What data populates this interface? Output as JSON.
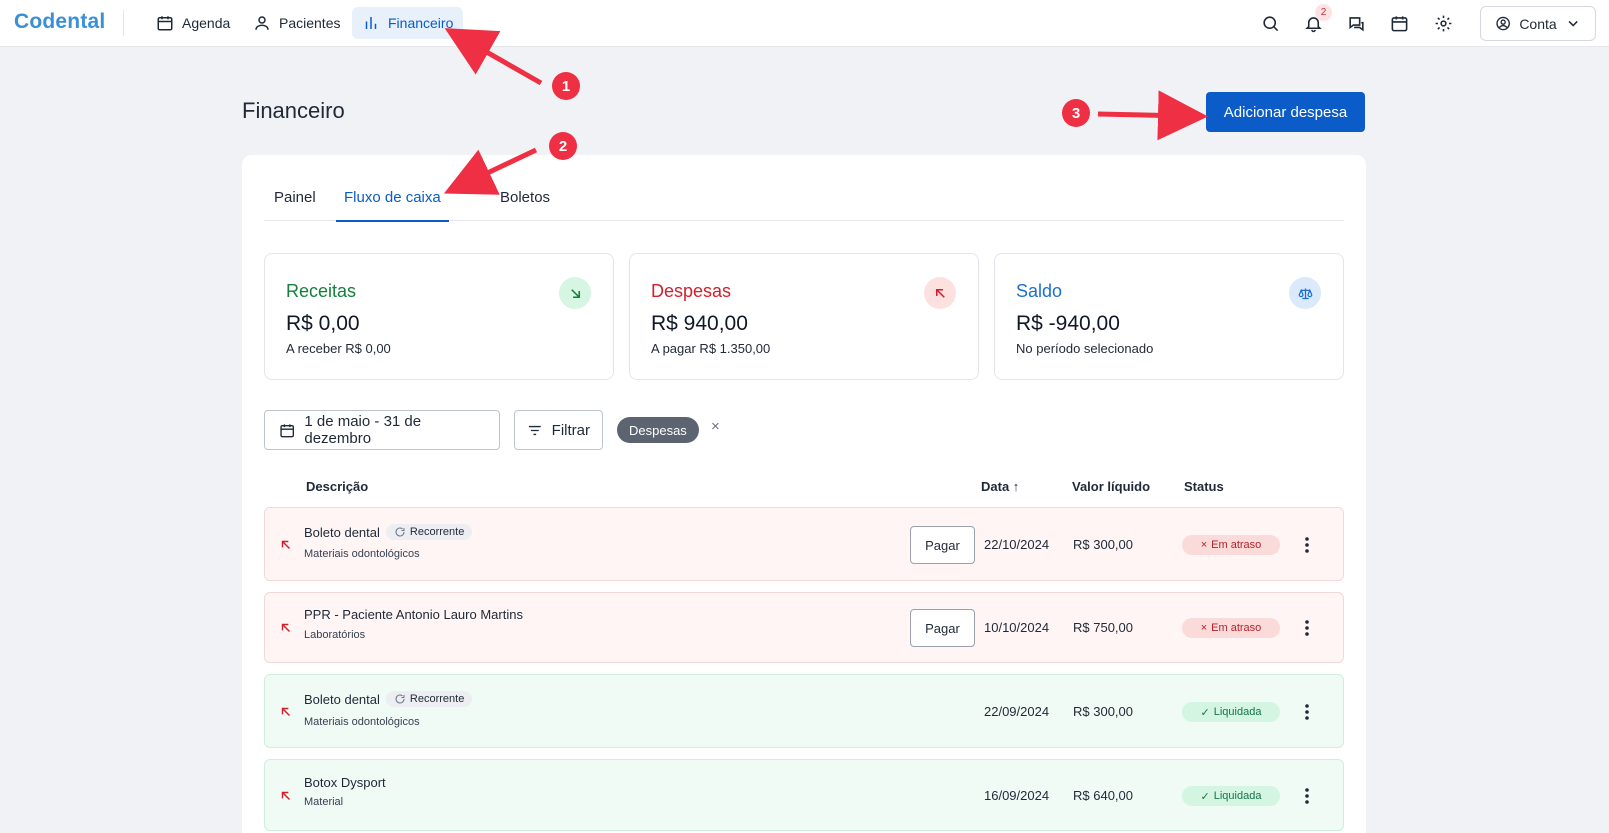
{
  "nav": {
    "logo": "Codental",
    "items": [
      {
        "label": "Agenda",
        "icon": "calendar-icon"
      },
      {
        "label": "Pacientes",
        "icon": "user-icon"
      },
      {
        "label": "Financeiro",
        "icon": "bar-chart-icon",
        "active": true
      }
    ],
    "notifications_count": "2",
    "account_label": "Conta"
  },
  "page": {
    "title": "Financeiro",
    "add_button": "Adicionar despesa"
  },
  "tabs": [
    {
      "label": "Painel"
    },
    {
      "label": "Fluxo de caixa",
      "active": true
    },
    {
      "label": "Boletos"
    }
  ],
  "stats": {
    "receitas": {
      "label": "Receitas",
      "amount": "R$ 0,00",
      "sub": "A receber R$ 0,00",
      "color": "#15803d",
      "bg": "#d6f5e3"
    },
    "despesas": {
      "label": "Despesas",
      "amount": "R$ 940,00",
      "sub": "A pagar R$ 1.350,00",
      "color": "#d21f2c",
      "bg": "#fde1e1"
    },
    "saldo": {
      "label": "Saldo",
      "amount": "R$ -940,00",
      "sub": "No período selecionado",
      "color": "#1d6fce",
      "bg": "#dbeafb"
    }
  },
  "filters": {
    "date_range": "1 de maio - 31 de dezembro",
    "filter_label": "Filtrar",
    "active_chip": "Despesas",
    "chip_close": "×"
  },
  "table": {
    "headers": {
      "description": "Descrição",
      "date": "Data ↑",
      "net_value": "Valor líquido",
      "status": "Status"
    },
    "rows": [
      {
        "description": "Boleto dental",
        "tag": "Recorrente",
        "category": "Materiais odontológicos",
        "pay_label": "Pagar",
        "date": "22/10/2024",
        "value": "R$ 300,00",
        "status": "Em atraso"
      },
      {
        "description": "PPR - Paciente Antonio Lauro Martins",
        "tag": "",
        "category": "Laboratórios",
        "pay_label": "Pagar",
        "date": "10/10/2024",
        "value": "R$ 750,00",
        "status": "Em atraso"
      },
      {
        "description": "Boleto dental",
        "tag": "Recorrente",
        "category": "Materiais odontológicos",
        "pay_label": "",
        "date": "22/09/2024",
        "value": "R$ 300,00",
        "status": "Liquidada"
      },
      {
        "description": "Botox Dysport",
        "tag": "",
        "category": "Material",
        "pay_label": "",
        "date": "16/09/2024",
        "value": "R$ 640,00",
        "status": "Liquidada"
      }
    ]
  },
  "annotations": [
    "1",
    "2",
    "3"
  ]
}
